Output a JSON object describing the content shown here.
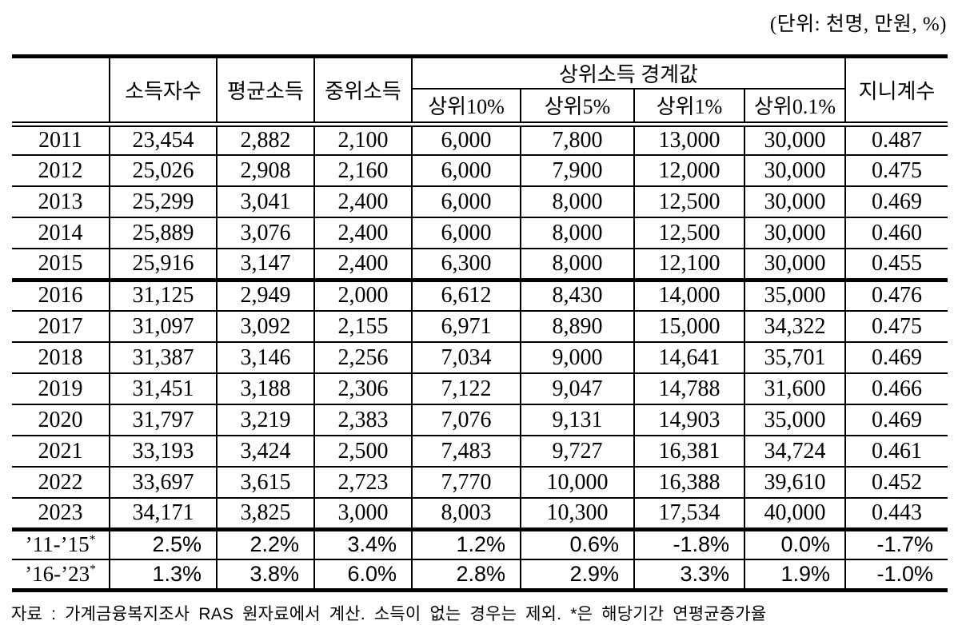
{
  "page": {
    "unit_note": "(단위: 천명, 만원, %)",
    "footnote": "자료 : 가계금융복지조사 RAS 원자료에서 계산. 소득이 없는 경우는 제외. *은 해당기간 연평균증가율"
  },
  "table": {
    "column_headers": {
      "year": "",
      "income_earners": "소득자수",
      "mean_income": "평균소득",
      "median_income": "중위소득",
      "top_income_group": "상위소득 경계값",
      "top10": "상위10%",
      "top5": "상위5%",
      "top1": "상위1%",
      "top01": "상위0.1%",
      "gini": "지니계수"
    },
    "groups": [
      {
        "rows": [
          {
            "year": "2011",
            "values": [
              "23,454",
              "2,882",
              "2,100",
              "6,000",
              "7,800",
              "13,000",
              "30,000",
              "0.487"
            ]
          },
          {
            "year": "2012",
            "values": [
              "25,026",
              "2,908",
              "2,160",
              "6,000",
              "7,900",
              "12,000",
              "30,000",
              "0.475"
            ]
          },
          {
            "year": "2013",
            "values": [
              "25,299",
              "3,041",
              "2,400",
              "6,000",
              "8,000",
              "12,500",
              "30,000",
              "0.469"
            ]
          },
          {
            "year": "2014",
            "values": [
              "25,889",
              "3,076",
              "2,400",
              "6,000",
              "8,000",
              "12,500",
              "30,000",
              "0.460"
            ]
          },
          {
            "year": "2015",
            "values": [
              "25,916",
              "3,147",
              "2,400",
              "6,300",
              "8,000",
              "12,100",
              "30,000",
              "0.455"
            ]
          }
        ]
      },
      {
        "rows": [
          {
            "year": "2016",
            "values": [
              "31,125",
              "2,949",
              "2,000",
              "6,612",
              "8,430",
              "14,000",
              "35,000",
              "0.476"
            ]
          },
          {
            "year": "2017",
            "values": [
              "31,097",
              "3,092",
              "2,155",
              "6,971",
              "8,890",
              "15,000",
              "34,322",
              "0.475"
            ]
          },
          {
            "year": "2018",
            "values": [
              "31,387",
              "3,146",
              "2,256",
              "7,034",
              "9,000",
              "14,641",
              "35,701",
              "0.469"
            ]
          },
          {
            "year": "2019",
            "values": [
              "31,451",
              "3,188",
              "2,306",
              "7,122",
              "9,047",
              "14,788",
              "31,600",
              "0.466"
            ]
          },
          {
            "year": "2020",
            "values": [
              "31,797",
              "3,219",
              "2,383",
              "7,076",
              "9,131",
              "14,903",
              "35,000",
              "0.469"
            ]
          },
          {
            "year": "2021",
            "values": [
              "33,193",
              "3,424",
              "2,500",
              "7,483",
              "9,727",
              "16,381",
              "34,724",
              "0.461"
            ]
          },
          {
            "year": "2022",
            "values": [
              "33,697",
              "3,615",
              "2,723",
              "7,770",
              "10,000",
              "16,388",
              "39,610",
              "0.452"
            ]
          },
          {
            "year": "2023",
            "values": [
              "34,171",
              "3,825",
              "3,000",
              "8,003",
              "10,300",
              "17,534",
              "40,000",
              "0.443"
            ]
          }
        ]
      }
    ],
    "summary_rows": [
      {
        "label": "’11-’15",
        "superscript": "*",
        "values": [
          "2.5%",
          "2.2%",
          "3.4%",
          "1.2%",
          "0.6%",
          "-1.8%",
          "0.0%",
          "-1.7%"
        ]
      },
      {
        "label": "’16-’23",
        "superscript": "*",
        "values": [
          "1.3%",
          "3.8%",
          "6.0%",
          "2.8%",
          "2.9%",
          "3.3%",
          "1.9%",
          "-1.0%"
        ]
      }
    ]
  }
}
